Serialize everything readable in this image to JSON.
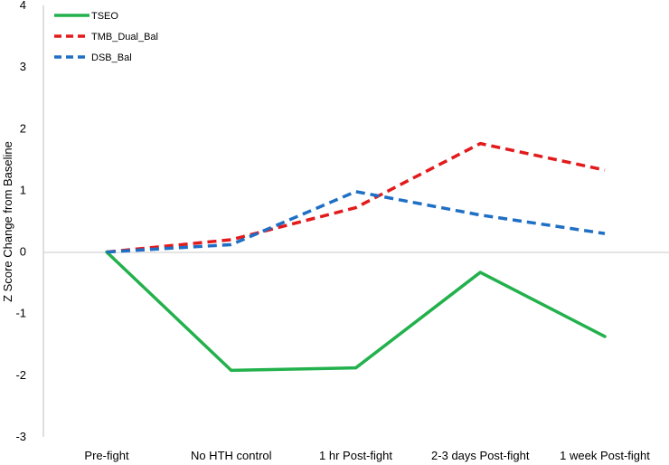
{
  "chart_data": {
    "type": "line",
    "categories": [
      "Pre-fight",
      "No HTH control",
      "1 hr Post-fight",
      "2-3 days Post-fight",
      "1 week Post-fight"
    ],
    "ylabel": "Z Score Change from Baseline",
    "xlabel": "",
    "ylim": [
      -3,
      4
    ],
    "yticks": [
      -3,
      -2,
      -1,
      0,
      1,
      2,
      3,
      4
    ],
    "grid": false,
    "zero_line": true,
    "legend_position": "top-left",
    "series": [
      {
        "name": "TSEO",
        "values": [
          0,
          -1.92,
          -1.88,
          -0.33,
          -1.37
        ],
        "color": "#22b14c",
        "style": "solid"
      },
      {
        "name": "TMB_Dual_Bal",
        "values": [
          0,
          0.2,
          0.72,
          1.76,
          1.33
        ],
        "color": "#e31a1c",
        "style": "dashed"
      },
      {
        "name": "DSB_Bal",
        "values": [
          0,
          0.12,
          0.98,
          0.6,
          0.3
        ],
        "color": "#1f6fc5",
        "style": "dashed"
      }
    ]
  }
}
